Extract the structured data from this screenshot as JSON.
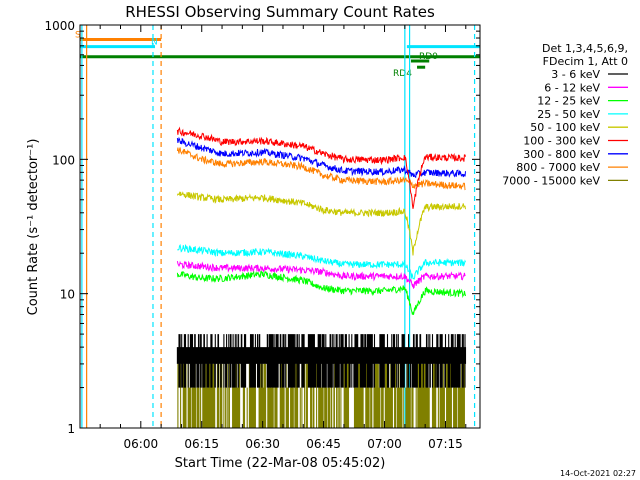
{
  "chart_data": {
    "type": "line",
    "title": "RHESSI Observing Summary Count Rates",
    "xlabel": "Start Time (22-Mar-08 05:45:02)",
    "ylabel": "Count Rate (s⁻¹ detector⁻¹)",
    "yscale": "log",
    "ylim": [
      1,
      1000
    ],
    "xlim": [
      "05:45:02",
      "07:23:30"
    ],
    "x_ticks": [
      "06:00",
      "06:15",
      "06:30",
      "06:45",
      "07:00",
      "07:15"
    ],
    "y_ticks": [
      "1",
      "10",
      "100",
      "1000"
    ],
    "legend_header": [
      "Det 1,3,4,5,6,9,",
      "FDecim 1, Att 0"
    ],
    "legend_position": "right",
    "timestamp": "14-Oct-2021 02:27",
    "flags": [
      {
        "label": "S",
        "color": "#ff8000",
        "start": "05:45:02",
        "end": "06:05:00",
        "y": 780
      },
      {
        "label": "N",
        "color": "#00e5ff",
        "start": "05:45:02",
        "end": "06:03:30",
        "y": 690
      },
      {
        "label": "",
        "color": "#00e5ff",
        "start": "07:05:30",
        "end": "07:23:30",
        "y": 690
      },
      {
        "label": "",
        "color": "#008000",
        "start": "05:45:02",
        "end": "07:23:30",
        "y": 580
      },
      {
        "label": "RD0",
        "color": "#008000",
        "start": "07:06:30",
        "end": "07:11:00",
        "y": 540
      },
      {
        "label": "RD4",
        "color": "#008000",
        "start": "07:08:00",
        "end": "07:10:00",
        "y": 485
      }
    ],
    "markers": [
      {
        "time": "05:46:40",
        "color": "#ff8000",
        "style": "solid"
      },
      {
        "time": "05:45:30",
        "color": "#00e5ff",
        "style": "solid"
      },
      {
        "time": "06:03:00",
        "color": "#00e5ff",
        "style": "dashed"
      },
      {
        "time": "06:05:00",
        "color": "#ff8000",
        "style": "dashed"
      },
      {
        "time": "07:05:00",
        "color": "#00e5ff",
        "style": "solid"
      },
      {
        "time": "07:06:10",
        "color": "#00e5ff",
        "style": "solid"
      },
      {
        "time": "07:22:10",
        "color": "#00e5ff",
        "style": "dashed"
      }
    ],
    "series": [
      {
        "name": "3 - 6 keV",
        "color": "#000000",
        "band": "digital",
        "x": [
          "06:09",
          "06:20",
          "06:30",
          "06:40",
          "06:50",
          "07:05",
          "07:20"
        ],
        "y": [
          3.5,
          3.5,
          3.2,
          3.0,
          3.2,
          3.0,
          3.2
        ]
      },
      {
        "name": "6 - 12 keV",
        "color": "#ff00ff",
        "x": [
          "06:09",
          "06:15",
          "06:20",
          "06:30",
          "06:40",
          "06:45",
          "06:50",
          "07:00",
          "07:05",
          "07:07",
          "07:10",
          "07:20"
        ],
        "y": [
          16.5,
          16,
          15.5,
          15.5,
          15,
          14.5,
          13.5,
          13.5,
          13.5,
          11.5,
          13.5,
          13.5
        ]
      },
      {
        "name": "12 - 25 keV",
        "color": "#00ff00",
        "x": [
          "06:09",
          "06:15",
          "06:20",
          "06:30",
          "06:40",
          "06:45",
          "06:50",
          "07:00",
          "07:05",
          "07:07",
          "07:10",
          "07:20"
        ],
        "y": [
          14,
          13,
          13,
          14,
          12.5,
          11,
          10.5,
          10.5,
          11,
          7,
          10.5,
          10
        ]
      },
      {
        "name": "25 - 50 keV",
        "color": "#00ffff",
        "x": [
          "06:09",
          "06:15",
          "06:20",
          "06:30",
          "06:40",
          "06:45",
          "06:50",
          "07:00",
          "07:05",
          "07:07",
          "07:10",
          "07:20"
        ],
        "y": [
          22,
          21,
          20,
          20.5,
          19,
          17.5,
          16.5,
          16.5,
          16.5,
          13,
          17,
          17
        ]
      },
      {
        "name": "50 - 100 keV",
        "color": "#c8c800",
        "x": [
          "06:09",
          "06:15",
          "06:20",
          "06:30",
          "06:40",
          "06:45",
          "06:50",
          "07:00",
          "07:05",
          "07:07",
          "07:10",
          "07:20"
        ],
        "y": [
          56,
          52,
          50,
          52,
          47,
          42,
          40,
          40,
          41,
          20,
          44,
          45
        ]
      },
      {
        "name": "100 - 300 keV",
        "color": "#ff0000",
        "x": [
          "06:09",
          "06:15",
          "06:20",
          "06:30",
          "06:40",
          "06:45",
          "06:50",
          "07:00",
          "07:05",
          "07:07",
          "07:10",
          "07:20"
        ],
        "y": [
          162,
          150,
          135,
          137,
          125,
          110,
          100,
          99,
          104,
          42,
          104,
          102
        ]
      },
      {
        "name": "300 - 800 keV",
        "color": "#0000ff",
        "x": [
          "06:09",
          "06:15",
          "06:20",
          "06:30",
          "06:40",
          "06:45",
          "06:50",
          "07:00",
          "07:05",
          "07:07",
          "07:10",
          "07:20"
        ],
        "y": [
          138,
          122,
          110,
          113,
          102,
          90,
          82,
          81,
          84,
          76,
          80,
          78
        ]
      },
      {
        "name": "800 - 7000 keV",
        "color": "#ff8000",
        "x": [
          "06:09",
          "06:15",
          "06:20",
          "06:30",
          "06:40",
          "06:45",
          "06:50",
          "07:00",
          "07:05",
          "07:07",
          "07:10",
          "07:20"
        ],
        "y": [
          118,
          100,
          92,
          96,
          88,
          76,
          70,
          68,
          70,
          64,
          66,
          63
        ]
      },
      {
        "name": "7000 - 15000 keV",
        "color": "#808000",
        "band": "digital",
        "x": [
          "06:09",
          "06:20",
          "06:30",
          "06:40",
          "06:50",
          "07:05",
          "07:20"
        ],
        "y": [
          2.0,
          2.0,
          2.5,
          2.0,
          2.0,
          2.3,
          2.5
        ]
      }
    ]
  }
}
